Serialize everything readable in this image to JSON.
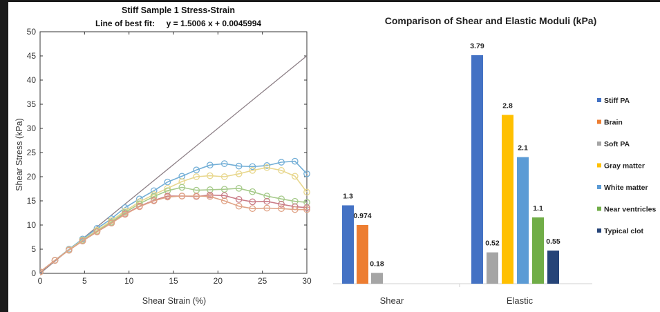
{
  "chart_data": [
    {
      "type": "scatter",
      "title": "Stiff Sample 1 Stress-Strain",
      "subtitle": "Line of best fit:     y = 1.5006 x + 0.0045994",
      "xlabel": "Shear Strain (%)",
      "ylabel": "Shear Stress (kPa)",
      "xlim": [
        0,
        30
      ],
      "ylim": [
        0,
        50
      ],
      "xticks": [
        0,
        5,
        10,
        15,
        20,
        25,
        30
      ],
      "yticks": [
        0,
        5,
        10,
        15,
        20,
        25,
        30,
        35,
        40,
        45,
        50
      ],
      "grid": false,
      "fit_line": {
        "slope": 1.5006,
        "intercept": 0.0045994,
        "x_range": [
          0,
          30
        ],
        "color": "#8c7f86"
      },
      "series": [
        {
          "color": "#72aed6",
          "points": [
            [
              0,
              0.3
            ],
            [
              1.75,
              2.7
            ],
            [
              3.4,
              5.0
            ],
            [
              5.0,
              7.1
            ],
            [
              6.7,
              9.3
            ],
            [
              8.4,
              11.3
            ],
            [
              10.0,
              13.6
            ],
            [
              11.7,
              15.4
            ],
            [
              13.4,
              17.1
            ],
            [
              15.0,
              18.9
            ],
            [
              16.7,
              20.1
            ],
            [
              18.4,
              21.4
            ],
            [
              20.0,
              22.4
            ],
            [
              21.7,
              22.7
            ],
            [
              23.4,
              22.2
            ],
            [
              25.0,
              22.1
            ],
            [
              26.7,
              22.3
            ],
            [
              28.4,
              23.0
            ],
            [
              30.0,
              23.2
            ],
            [
              31.4,
              20.6
            ]
          ]
        },
        {
          "color": "#e8d78e",
          "points": [
            [
              0,
              0.3
            ],
            [
              1.75,
              2.7
            ],
            [
              3.4,
              4.9
            ],
            [
              5.0,
              6.9
            ],
            [
              6.7,
              8.9
            ],
            [
              8.4,
              10.9
            ],
            [
              10.0,
              12.9
            ],
            [
              11.7,
              14.8
            ],
            [
              13.4,
              16.3
            ],
            [
              15.0,
              17.6
            ],
            [
              16.7,
              19.0
            ],
            [
              18.4,
              20.0
            ],
            [
              20.0,
              20.2
            ],
            [
              21.7,
              20.0
            ],
            [
              23.4,
              20.6
            ],
            [
              25.0,
              21.3
            ],
            [
              26.7,
              21.9
            ],
            [
              28.4,
              21.3
            ],
            [
              30.0,
              20.1
            ],
            [
              31.4,
              16.8
            ]
          ]
        },
        {
          "color": "#a6ca8a",
          "points": [
            [
              0,
              0.3
            ],
            [
              1.75,
              2.7
            ],
            [
              3.4,
              4.8
            ],
            [
              5.0,
              6.8
            ],
            [
              6.7,
              8.7
            ],
            [
              8.4,
              10.6
            ],
            [
              10.0,
              12.6
            ],
            [
              11.7,
              14.4
            ],
            [
              13.4,
              15.9
            ],
            [
              15.0,
              17.1
            ],
            [
              16.7,
              17.8
            ],
            [
              18.4,
              17.2
            ],
            [
              20.0,
              17.3
            ],
            [
              21.7,
              17.4
            ],
            [
              23.4,
              17.6
            ],
            [
              25.0,
              16.9
            ],
            [
              26.7,
              16.0
            ],
            [
              28.4,
              15.4
            ],
            [
              30.0,
              14.9
            ],
            [
              31.4,
              14.7
            ]
          ]
        },
        {
          "color": "#c97b86",
          "points": [
            [
              0,
              0.3
            ],
            [
              1.75,
              2.7
            ],
            [
              3.4,
              4.8
            ],
            [
              5.0,
              6.7
            ],
            [
              6.7,
              8.6
            ],
            [
              8.4,
              10.4
            ],
            [
              10.0,
              12.3
            ],
            [
              11.7,
              13.9
            ],
            [
              13.4,
              15.1
            ],
            [
              15.0,
              16.0
            ],
            [
              16.7,
              16.0
            ],
            [
              18.4,
              15.9
            ],
            [
              20.0,
              16.2
            ],
            [
              21.7,
              16.1
            ],
            [
              23.4,
              15.3
            ],
            [
              25.0,
              14.8
            ],
            [
              26.7,
              14.9
            ],
            [
              28.4,
              14.3
            ],
            [
              30.0,
              13.8
            ],
            [
              31.4,
              13.6
            ]
          ]
        },
        {
          "color": "#e0a386",
          "points": [
            [
              0,
              0.3
            ],
            [
              1.75,
              2.7
            ],
            [
              3.4,
              4.8
            ],
            [
              5.0,
              6.7
            ],
            [
              6.7,
              8.6
            ],
            [
              8.4,
              10.4
            ],
            [
              10.0,
              12.2
            ],
            [
              11.7,
              13.8
            ],
            [
              13.4,
              15.0
            ],
            [
              15.0,
              15.8
            ],
            [
              16.7,
              16.0
            ],
            [
              18.4,
              16.0
            ],
            [
              20.0,
              15.9
            ],
            [
              21.7,
              15.0
            ],
            [
              23.4,
              13.9
            ],
            [
              25.0,
              13.4
            ],
            [
              26.7,
              13.5
            ],
            [
              28.4,
              13.4
            ],
            [
              30.0,
              13.2
            ],
            [
              31.4,
              13.2
            ]
          ]
        }
      ]
    },
    {
      "type": "bar",
      "title": "Comparison of Shear and Elastic Moduli (kPa)",
      "categories": [
        "Shear",
        "Elastic"
      ],
      "grid": false,
      "legend_position": "right",
      "series": [
        {
          "name": "Stiff PA",
          "color": "#4472c4",
          "values": [
            1.3,
            3.79
          ],
          "labels": [
            "1.3",
            "3.79"
          ]
        },
        {
          "name": "Brain",
          "color": "#ed7d31",
          "values": [
            0.974,
            null
          ],
          "labels": [
            "0.974",
            ""
          ]
        },
        {
          "name": "Soft PA",
          "color": "#a5a5a5",
          "values": [
            0.18,
            0.52
          ],
          "labels": [
            "0.18",
            "0.52"
          ]
        },
        {
          "name": "Gray matter",
          "color": "#ffc000",
          "values": [
            null,
            2.8
          ],
          "labels": [
            "",
            "2.8"
          ]
        },
        {
          "name": "White matter",
          "color": "#5b9bd5",
          "values": [
            null,
            2.1
          ],
          "labels": [
            "",
            "2.1"
          ]
        },
        {
          "name": "Near ventricles",
          "color": "#70ad47",
          "values": [
            null,
            1.1
          ],
          "labels": [
            "",
            "1.1"
          ]
        },
        {
          "name": "Typical clot",
          "color": "#264478",
          "values": [
            null,
            0.55
          ],
          "labels": [
            "",
            "0.55"
          ]
        }
      ]
    }
  ]
}
